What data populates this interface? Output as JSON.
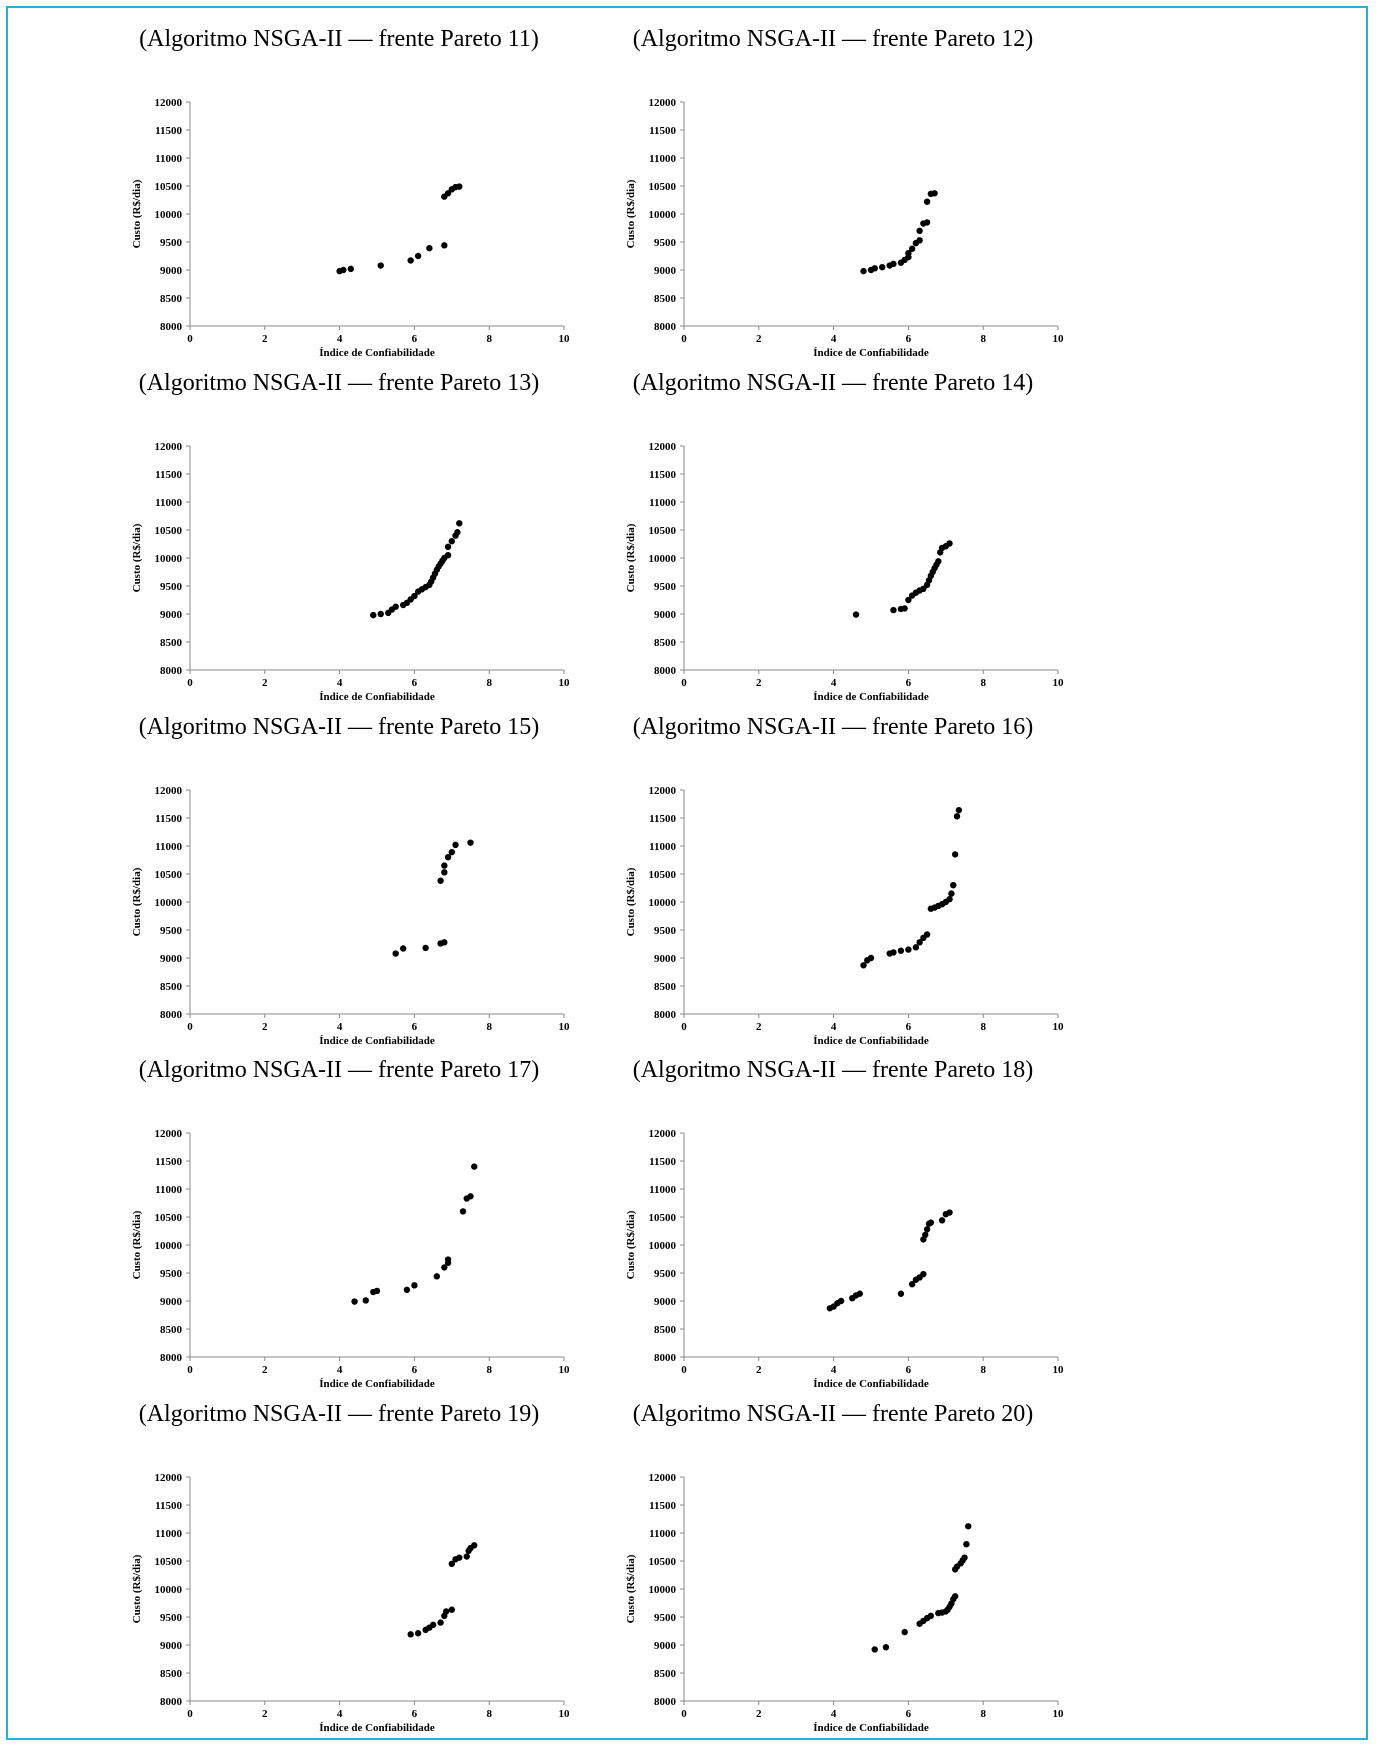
{
  "chart_data": [
    {
      "type": "scatter",
      "title": "(Algoritmo NSGA-II — frente Pareto 11)",
      "xlabel": "Índice de Confiabilidade",
      "ylabel": "Custo (R$/dia)",
      "xlim": [
        0,
        10
      ],
      "ylim": [
        8000,
        12000
      ],
      "xticks": [
        0,
        2,
        4,
        6,
        8,
        10
      ],
      "yticks": [
        8000,
        8500,
        9000,
        9500,
        10000,
        10500,
        11000,
        11500,
        12000
      ],
      "grid": false,
      "legend": "none",
      "points": [
        [
          4.0,
          8980
        ],
        [
          4.1,
          9000
        ],
        [
          4.3,
          9020
        ],
        [
          5.1,
          9080
        ],
        [
          5.9,
          9170
        ],
        [
          6.1,
          9250
        ],
        [
          6.4,
          9390
        ],
        [
          6.8,
          9440
        ],
        [
          6.8,
          10310
        ],
        [
          6.9,
          10370
        ],
        [
          7.0,
          10440
        ],
        [
          7.1,
          10480
        ],
        [
          7.2,
          10490
        ]
      ]
    },
    {
      "type": "scatter",
      "title": "(Algoritmo NSGA-II — frente Pareto 12)",
      "xlabel": "Índice de Confiabilidade",
      "ylabel": "Custo (R$/dia)",
      "xlim": [
        0,
        10
      ],
      "ylim": [
        8000,
        12000
      ],
      "xticks": [
        0,
        2,
        4,
        6,
        8,
        10
      ],
      "yticks": [
        8000,
        8500,
        9000,
        9500,
        10000,
        10500,
        11000,
        11500,
        12000
      ],
      "grid": false,
      "legend": "none",
      "points": [
        [
          4.8,
          8980
        ],
        [
          5.0,
          9000
        ],
        [
          5.1,
          9030
        ],
        [
          5.3,
          9050
        ],
        [
          5.5,
          9080
        ],
        [
          5.6,
          9110
        ],
        [
          5.8,
          9130
        ],
        [
          5.9,
          9180
        ],
        [
          6.0,
          9230
        ],
        [
          6.0,
          9300
        ],
        [
          6.1,
          9380
        ],
        [
          6.2,
          9480
        ],
        [
          6.3,
          9530
        ],
        [
          6.3,
          9700
        ],
        [
          6.4,
          9830
        ],
        [
          6.5,
          9850
        ],
        [
          6.5,
          10220
        ],
        [
          6.6,
          10360
        ],
        [
          6.7,
          10370
        ]
      ]
    },
    {
      "type": "scatter",
      "title": "(Algoritmo NSGA-II — frente Pareto 13)",
      "xlabel": "Índice de Confiabilidade",
      "ylabel": "Custo (R$/dia)",
      "xlim": [
        0,
        10
      ],
      "ylim": [
        8000,
        12000
      ],
      "xticks": [
        0,
        2,
        4,
        6,
        8,
        10
      ],
      "yticks": [
        8000,
        8500,
        9000,
        9500,
        10000,
        10500,
        11000,
        11500,
        12000
      ],
      "grid": false,
      "legend": "none",
      "points": [
        [
          4.9,
          8980
        ],
        [
          5.1,
          9000
        ],
        [
          5.3,
          9020
        ],
        [
          5.4,
          9080
        ],
        [
          5.5,
          9130
        ],
        [
          5.7,
          9160
        ],
        [
          5.8,
          9200
        ],
        [
          5.9,
          9260
        ],
        [
          6.0,
          9320
        ],
        [
          6.1,
          9400
        ],
        [
          6.2,
          9440
        ],
        [
          6.3,
          9480
        ],
        [
          6.4,
          9520
        ],
        [
          6.45,
          9580
        ],
        [
          6.5,
          9650
        ],
        [
          6.55,
          9720
        ],
        [
          6.6,
          9790
        ],
        [
          6.65,
          9850
        ],
        [
          6.7,
          9900
        ],
        [
          6.75,
          9950
        ],
        [
          6.8,
          10000
        ],
        [
          6.9,
          10050
        ],
        [
          6.9,
          10200
        ],
        [
          7.0,
          10300
        ],
        [
          7.1,
          10400
        ],
        [
          7.15,
          10460
        ],
        [
          7.2,
          10620
        ]
      ]
    },
    {
      "type": "scatter",
      "title": "(Algoritmo NSGA-II — frente Pareto 14)",
      "xlabel": "Índice de Confiabilidade",
      "ylabel": "Custo (R$/dia)",
      "xlim": [
        0,
        10
      ],
      "ylim": [
        8000,
        12000
      ],
      "xticks": [
        0,
        2,
        4,
        6,
        8,
        10
      ],
      "yticks": [
        8000,
        8500,
        9000,
        9500,
        10000,
        10500,
        11000,
        11500,
        12000
      ],
      "grid": false,
      "legend": "none",
      "points": [
        [
          4.6,
          8990
        ],
        [
          5.6,
          9070
        ],
        [
          5.8,
          9090
        ],
        [
          5.9,
          9100
        ],
        [
          6.0,
          9250
        ],
        [
          6.1,
          9330
        ],
        [
          6.2,
          9380
        ],
        [
          6.3,
          9420
        ],
        [
          6.4,
          9450
        ],
        [
          6.5,
          9520
        ],
        [
          6.55,
          9600
        ],
        [
          6.6,
          9680
        ],
        [
          6.65,
          9750
        ],
        [
          6.7,
          9820
        ],
        [
          6.75,
          9880
        ],
        [
          6.8,
          9940
        ],
        [
          6.85,
          10100
        ],
        [
          6.9,
          10180
        ],
        [
          7.0,
          10210
        ],
        [
          7.1,
          10260
        ]
      ]
    },
    {
      "type": "scatter",
      "title": "(Algoritmo NSGA-II — frente Pareto 15)",
      "xlabel": "Índice de Confiabilidade",
      "ylabel": "Custo (R$/dia)",
      "xlim": [
        0,
        10
      ],
      "ylim": [
        8000,
        12000
      ],
      "xticks": [
        0,
        2,
        4,
        6,
        8,
        10
      ],
      "yticks": [
        8000,
        8500,
        9000,
        9500,
        10000,
        10500,
        11000,
        11500,
        12000
      ],
      "grid": false,
      "legend": "none",
      "points": [
        [
          5.5,
          9080
        ],
        [
          5.7,
          9170
        ],
        [
          6.3,
          9180
        ],
        [
          6.7,
          9260
        ],
        [
          6.8,
          9280
        ],
        [
          6.7,
          10380
        ],
        [
          6.8,
          10530
        ],
        [
          6.8,
          10650
        ],
        [
          6.9,
          10800
        ],
        [
          7.0,
          10890
        ],
        [
          7.1,
          11020
        ],
        [
          7.5,
          11060
        ]
      ]
    },
    {
      "type": "scatter",
      "title": "(Algoritmo NSGA-II — frente Pareto 16)",
      "xlabel": "Índice de Confiabilidade",
      "ylabel": "Custo (R$/dia)",
      "xlim": [
        0,
        10
      ],
      "ylim": [
        8000,
        12000
      ],
      "xticks": [
        0,
        2,
        4,
        6,
        8,
        10
      ],
      "yticks": [
        8000,
        8500,
        9000,
        9500,
        10000,
        10500,
        11000,
        11500,
        12000
      ],
      "grid": false,
      "legend": "none",
      "points": [
        [
          4.8,
          8870
        ],
        [
          4.9,
          8960
        ],
        [
          5.0,
          9000
        ],
        [
          5.5,
          9080
        ],
        [
          5.6,
          9100
        ],
        [
          5.8,
          9130
        ],
        [
          6.0,
          9150
        ],
        [
          6.2,
          9190
        ],
        [
          6.3,
          9280
        ],
        [
          6.4,
          9360
        ],
        [
          6.5,
          9420
        ],
        [
          6.6,
          9880
        ],
        [
          6.7,
          9900
        ],
        [
          6.8,
          9930
        ],
        [
          6.9,
          9960
        ],
        [
          7.0,
          10000
        ],
        [
          7.1,
          10050
        ],
        [
          7.15,
          10150
        ],
        [
          7.2,
          10300
        ],
        [
          7.25,
          10850
        ],
        [
          7.3,
          11530
        ],
        [
          7.35,
          11640
        ]
      ]
    },
    {
      "type": "scatter",
      "title": "(Algoritmo NSGA-II — frente Pareto 17)",
      "xlabel": "Índice de Confiabilidade",
      "ylabel": "Custo (R$/dia)",
      "xlim": [
        0,
        10
      ],
      "ylim": [
        8000,
        12000
      ],
      "xticks": [
        0,
        2,
        4,
        6,
        8,
        10
      ],
      "yticks": [
        8000,
        8500,
        9000,
        9500,
        10000,
        10500,
        11000,
        11500,
        12000
      ],
      "grid": false,
      "legend": "none",
      "points": [
        [
          4.4,
          8990
        ],
        [
          4.7,
          9010
        ],
        [
          4.9,
          9160
        ],
        [
          5.0,
          9180
        ],
        [
          5.8,
          9200
        ],
        [
          6.0,
          9280
        ],
        [
          6.6,
          9440
        ],
        [
          6.8,
          9600
        ],
        [
          6.9,
          9680
        ],
        [
          6.9,
          9740
        ],
        [
          7.3,
          10600
        ],
        [
          7.4,
          10830
        ],
        [
          7.5,
          10870
        ],
        [
          7.6,
          11400
        ]
      ]
    },
    {
      "type": "scatter",
      "title": "(Algoritmo NSGA-II — frente Pareto 18)",
      "xlabel": "Índice de Confiabilidade",
      "ylabel": "Custo (R$/dia)",
      "xlim": [
        0,
        10
      ],
      "ylim": [
        8000,
        12000
      ],
      "xticks": [
        0,
        2,
        4,
        6,
        8,
        10
      ],
      "yticks": [
        8000,
        8500,
        9000,
        9500,
        10000,
        10500,
        11000,
        11500,
        12000
      ],
      "grid": false,
      "legend": "none",
      "points": [
        [
          3.9,
          8870
        ],
        [
          4.0,
          8900
        ],
        [
          4.1,
          8960
        ],
        [
          4.2,
          9000
        ],
        [
          4.5,
          9050
        ],
        [
          4.6,
          9100
        ],
        [
          4.7,
          9130
        ],
        [
          5.8,
          9130
        ],
        [
          6.1,
          9300
        ],
        [
          6.2,
          9380
        ],
        [
          6.3,
          9420
        ],
        [
          6.4,
          9480
        ],
        [
          6.4,
          10100
        ],
        [
          6.45,
          10180
        ],
        [
          6.5,
          10280
        ],
        [
          6.55,
          10380
        ],
        [
          6.6,
          10400
        ],
        [
          6.9,
          10440
        ],
        [
          7.0,
          10550
        ],
        [
          7.1,
          10580
        ]
      ]
    },
    {
      "type": "scatter",
      "title": "(Algoritmo NSGA-II — frente Pareto 19)",
      "xlabel": "Índice de Confiabilidade",
      "ylabel": "Custo (R$/dia)",
      "xlim": [
        0,
        10
      ],
      "ylim": [
        8000,
        12000
      ],
      "xticks": [
        0,
        2,
        4,
        6,
        8,
        10
      ],
      "yticks": [
        8000,
        8500,
        9000,
        9500,
        10000,
        10500,
        11000,
        11500,
        12000
      ],
      "grid": false,
      "legend": "none",
      "points": [
        [
          5.9,
          9190
        ],
        [
          6.1,
          9210
        ],
        [
          6.3,
          9270
        ],
        [
          6.4,
          9310
        ],
        [
          6.5,
          9360
        ],
        [
          6.7,
          9400
        ],
        [
          6.8,
          9520
        ],
        [
          6.85,
          9600
        ],
        [
          7.0,
          9630
        ],
        [
          7.0,
          10450
        ],
        [
          7.1,
          10530
        ],
        [
          7.2,
          10560
        ],
        [
          7.4,
          10580
        ],
        [
          7.45,
          10680
        ],
        [
          7.5,
          10730
        ],
        [
          7.6,
          10780
        ]
      ]
    },
    {
      "type": "scatter",
      "title": "(Algoritmo NSGA-II — frente Pareto 20)",
      "xlabel": "Índice de Confiabilidade",
      "ylabel": "Custo (R$/dia)",
      "xlim": [
        0,
        10
      ],
      "ylim": [
        8000,
        12000
      ],
      "xticks": [
        0,
        2,
        4,
        6,
        8,
        10
      ],
      "yticks": [
        8000,
        8500,
        9000,
        9500,
        10000,
        10500,
        11000,
        11500,
        12000
      ],
      "grid": false,
      "legend": "none",
      "points": [
        [
          5.1,
          8920
        ],
        [
          5.4,
          8960
        ],
        [
          5.9,
          9230
        ],
        [
          6.3,
          9380
        ],
        [
          6.4,
          9430
        ],
        [
          6.5,
          9480
        ],
        [
          6.6,
          9520
        ],
        [
          6.8,
          9570
        ],
        [
          6.9,
          9580
        ],
        [
          7.0,
          9600
        ],
        [
          7.05,
          9630
        ],
        [
          7.1,
          9680
        ],
        [
          7.15,
          9740
        ],
        [
          7.2,
          9820
        ],
        [
          7.25,
          9870
        ],
        [
          7.25,
          10350
        ],
        [
          7.3,
          10400
        ],
        [
          7.4,
          10460
        ],
        [
          7.45,
          10510
        ],
        [
          7.5,
          10560
        ],
        [
          7.55,
          10800
        ],
        [
          7.6,
          11120
        ]
      ]
    }
  ]
}
